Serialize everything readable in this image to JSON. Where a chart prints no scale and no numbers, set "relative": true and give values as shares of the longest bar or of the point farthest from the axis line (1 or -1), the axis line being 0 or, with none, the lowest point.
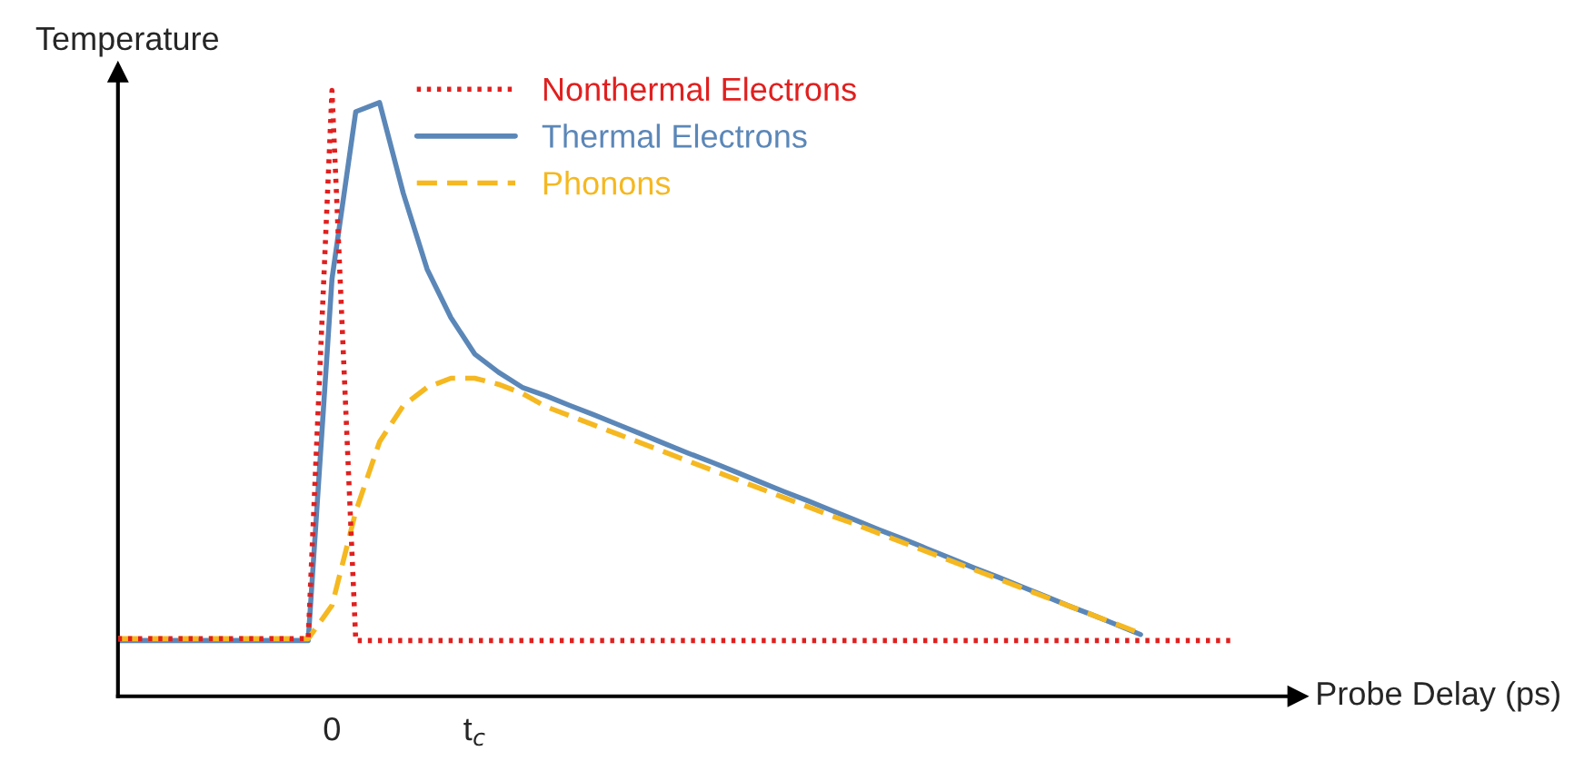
{
  "chart_data": {
    "type": "line",
    "relative": true,
    "ylabel": "Temperature",
    "xlabel": "Probe Delay (ps)",
    "legend": "top",
    "tick_labels": "x",
    "categories": [
      null,
      null,
      null,
      null,
      null,
      null,
      null,
      null,
      null,
      "0",
      null,
      null,
      null,
      null,
      null,
      "t$_{c}$",
      null,
      null,
      null,
      null,
      null,
      null,
      null,
      null,
      null,
      null,
      null,
      null,
      null,
      null,
      null,
      null,
      null,
      null,
      null,
      null,
      null,
      null,
      null,
      null,
      null,
      null,
      null,
      null,
      null,
      null,
      null,
      null
    ],
    "series": [
      {
        "name": "Nonthermal Electrons",
        "color": "#e0201f",
        "line_style": "dotted",
        "values": [
          0.095,
          0.095,
          0.095,
          0.095,
          0.095,
          0.095,
          0.095,
          0.095,
          0.095,
          1.0,
          0.092,
          0.092,
          0.092,
          0.092,
          0.092,
          0.092,
          0.092,
          0.092,
          0.092,
          0.092,
          0.092,
          0.092,
          0.092,
          0.092,
          0.092,
          0.092,
          0.092,
          0.092,
          0.092,
          0.092,
          0.092,
          0.092,
          0.092,
          0.092,
          0.092,
          0.092,
          0.092,
          0.092,
          0.092,
          0.092,
          0.092,
          0.092,
          0.092,
          0.092,
          0.092,
          0.092,
          0.092,
          0.092
        ]
      },
      {
        "name": "Thermal Electrons",
        "color": "#5b87b8",
        "line_style": "solid",
        "values": [
          0.092,
          0.092,
          0.092,
          0.092,
          0.092,
          0.092,
          0.092,
          0.092,
          0.092,
          0.689,
          0.965,
          0.98,
          0.83,
          0.705,
          0.625,
          0.565,
          0.535,
          0.51,
          0.496,
          0.48,
          0.465,
          0.449,
          0.433,
          0.417,
          0.401,
          0.386,
          0.37,
          0.354,
          0.338,
          0.323,
          0.307,
          0.291,
          0.275,
          0.26,
          0.244,
          0.228,
          0.212,
          0.197,
          0.181,
          0.165,
          0.149,
          0.134,
          0.118,
          0.102,
          null,
          null,
          null,
          null
        ]
      },
      {
        "name": "Phonons",
        "color": "#f5b820",
        "line_style": "dashed",
        "values": [
          0.095,
          0.095,
          0.095,
          0.095,
          0.095,
          0.095,
          0.095,
          0.095,
          0.095,
          0.15,
          0.305,
          0.42,
          0.48,
          0.51,
          0.525,
          0.525,
          0.515,
          0.5,
          0.478,
          0.463,
          0.448,
          0.433,
          0.418,
          0.403,
          0.388,
          0.373,
          0.358,
          0.343,
          0.328,
          0.313,
          0.298,
          0.284,
          0.269,
          0.254,
          0.239,
          0.224,
          0.209,
          0.194,
          0.179,
          0.164,
          0.149,
          0.134,
          0.119,
          0.104,
          null,
          null,
          null,
          null
        ]
      }
    ]
  }
}
